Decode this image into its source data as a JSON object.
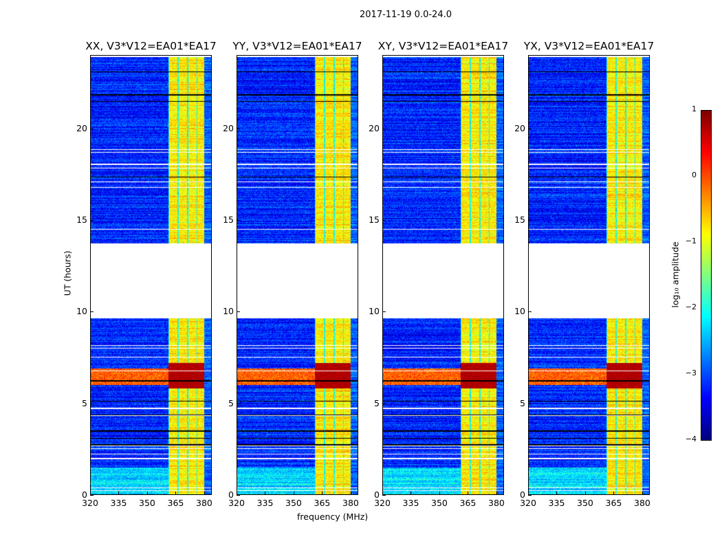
{
  "chart_data": {
    "type": "heatmap",
    "title": "2017-11-19 0.0-24.0",
    "xlabel": "frequency (MHz)",
    "ylabel": "UT (hours)",
    "xlim": [
      320,
      384
    ],
    "ylim": [
      0,
      24
    ],
    "xticks": [
      "320",
      "335",
      "350",
      "365",
      "380"
    ],
    "xtick_values": [
      320,
      335,
      350,
      365,
      380
    ],
    "yticks": [
      "0",
      "5",
      "10",
      "15",
      "20"
    ],
    "ytick_values": [
      0,
      5,
      10,
      15,
      20
    ],
    "panels": [
      {
        "title": "XX, V3*V12=EA01*EA17"
      },
      {
        "title": "YY, V3*V12=EA01*EA17"
      },
      {
        "title": "XY, V3*V12=EA01*EA17"
      },
      {
        "title": "YX, V3*V12=EA01*EA17"
      }
    ],
    "features": {
      "rfi_band_mhz": [
        361,
        380
      ],
      "no_data_hours": [
        9.65,
        13.7
      ],
      "strong_event_hours": [
        5.8,
        7.2
      ],
      "background_log_amplitude": -3.2,
      "rfi_log_amplitude": -0.8
    },
    "colorbar": {
      "label": "log₁₀ amplitude",
      "colormap": "jet",
      "range": [
        -4,
        1
      ],
      "ticks": [
        "1",
        "0",
        "−1",
        "−2",
        "−3",
        "−4"
      ],
      "tick_values": [
        1,
        0,
        -1,
        -2,
        -3,
        -4
      ]
    }
  }
}
